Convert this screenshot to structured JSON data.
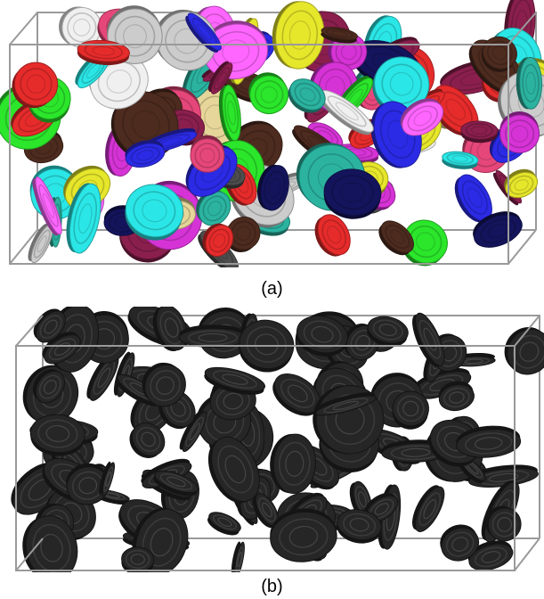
{
  "figure": {
    "caption_a": "(a)",
    "caption_b": "(b)"
  },
  "colors": {
    "box_edge": "#9a9a9a",
    "background": "#ffffff",
    "particle_dark": "#262626",
    "particle_palette": [
      "#d633d6",
      "#2b2be6",
      "#e6e62b",
      "#2be6e6",
      "#2be62b",
      "#e62b2b",
      "#4d2b1f",
      "#e6d699",
      "#14145c",
      "#e6477a",
      "#cccccc",
      "#2bb3a0",
      "#f0f0f0",
      "#8a1f4d",
      "#4d4d4d",
      "#ff66ff"
    ]
  }
}
